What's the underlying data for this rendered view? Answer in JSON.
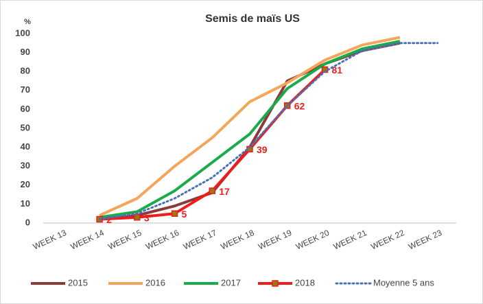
{
  "chart_data": {
    "type": "line",
    "title": "Semis de maïs US",
    "y_label": "%",
    "categories": [
      "WEEK 13",
      "WEEK 14",
      "WEEK 15",
      "WEEK 16",
      "WEEK 17",
      "WEEK 18",
      "WEEK 19",
      "WEEK 20",
      "WEEK 21",
      "WEEK 22",
      "WEEK 23"
    ],
    "series": [
      {
        "name": "2015",
        "color": "#8b3a3a",
        "values": [
          null,
          2,
          4,
          9,
          16,
          40,
          75,
          84,
          91,
          95,
          null
        ]
      },
      {
        "name": "2016",
        "color": "#f5a55a",
        "values": [
          null,
          4,
          13,
          30,
          45,
          64,
          74,
          86,
          94,
          98,
          null
        ]
      },
      {
        "name": "2017",
        "color": "#1aaa4a",
        "values": [
          null,
          3,
          6,
          17,
          32,
          47,
          71,
          84,
          92,
          96,
          null
        ]
      },
      {
        "name": "2018",
        "color": "#ee1c1c",
        "marker": "square",
        "marker_color": "#9a7a10",
        "data_labels": true,
        "values": [
          null,
          2,
          3,
          5,
          17,
          39,
          62,
          81,
          null,
          null,
          null
        ]
      },
      {
        "name": "Moyenne 5 ans",
        "color": "#4a70b8",
        "dash": "dotted",
        "values": [
          null,
          2,
          5,
          13,
          24,
          40,
          62,
          80,
          91,
          95,
          95
        ]
      }
    ],
    "ylim": [
      0,
      100
    ],
    "yticks": [
      0,
      10,
      20,
      30,
      40,
      50,
      60,
      70,
      80,
      90,
      100
    ],
    "grid": false,
    "legend": "bottom"
  }
}
